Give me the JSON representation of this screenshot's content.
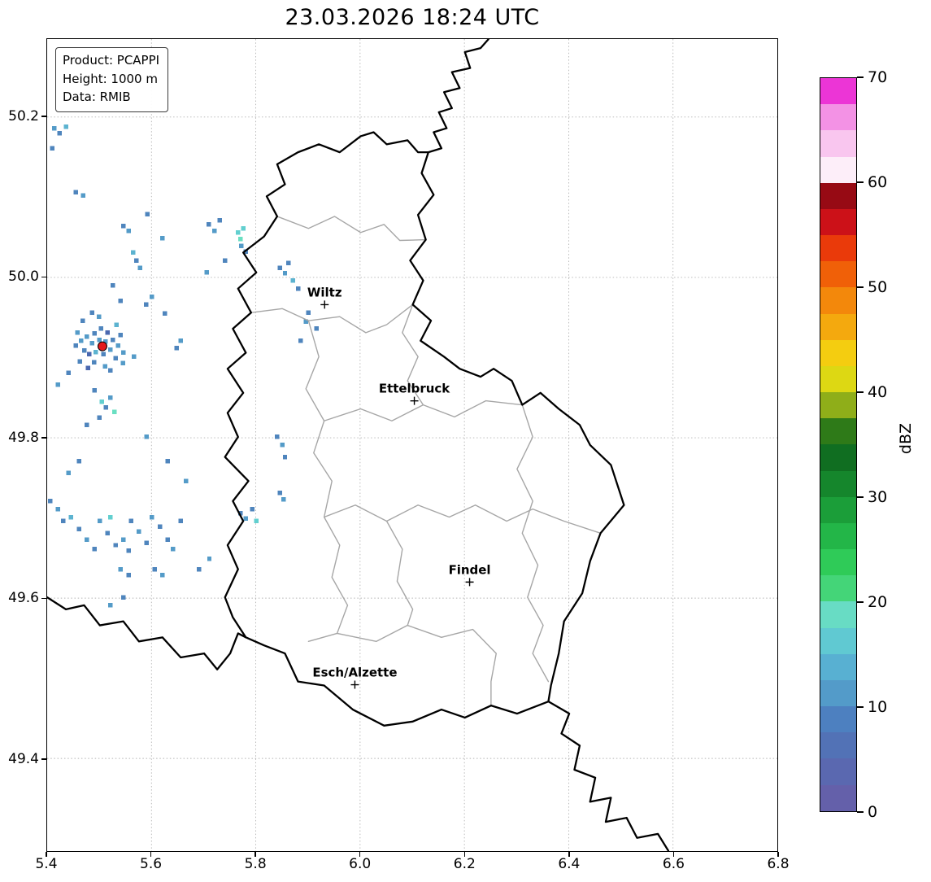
{
  "title": "23.03.2026 18:24 UTC",
  "info_box": {
    "lines": [
      "Product: PCAPPI",
      "Height: 1000 m",
      "Data: RMIB"
    ]
  },
  "axes": {
    "xlim": [
      5.4,
      6.8
    ],
    "ylim": [
      49.2845,
      50.2972
    ],
    "xticks": [
      5.4,
      5.6,
      5.8,
      6.0,
      6.2,
      6.4,
      6.6,
      6.8
    ],
    "xtick_labels": [
      "5.4",
      "5.6",
      "5.8",
      "6.0",
      "6.2",
      "6.4",
      "6.6",
      "6.8"
    ],
    "yticks": [
      50.2,
      50.0,
      49.8,
      49.6,
      49.4
    ],
    "ytick_labels": [
      "50.2",
      "50.0",
      "49.8",
      "49.6",
      "49.4"
    ],
    "grid_color": "#b3b3b3"
  },
  "colorbar": {
    "label": "dBZ",
    "min": 0,
    "max": 70,
    "ticks": [
      0,
      10,
      20,
      30,
      40,
      50,
      60,
      70
    ],
    "tick_labels": [
      "0",
      "10",
      "20",
      "30",
      "40",
      "50",
      "60",
      "70"
    ],
    "colors_bottom_to_top": [
      "#6460aa",
      "#5a68b0",
      "#5272b6",
      "#4d80c0",
      "#539bc9",
      "#58b0d2",
      "#60c9d2",
      "#68dcc4",
      "#44d578",
      "#2fcb58",
      "#23b648",
      "#1b9e39",
      "#15862c",
      "#106e21",
      "#2e7a18",
      "#8fae19",
      "#ddd813",
      "#f4cd10",
      "#f4a90e",
      "#f3880b",
      "#f06008",
      "#ea3a0a",
      "#cc1118",
      "#970a14",
      "#fdeef9",
      "#f9c6ef",
      "#f392e5",
      "#ec35d6"
    ]
  },
  "map": {
    "border_color": "#000000",
    "internal_border_color": "#a6a6a6",
    "cities": [
      {
        "name": "Wiltz",
        "lon": 5.932,
        "lat": 49.966
      },
      {
        "name": "Ettelbruck",
        "lon": 6.104,
        "lat": 49.846
      },
      {
        "name": "Findel",
        "lon": 6.21,
        "lat": 49.62
      },
      {
        "name": "Esch/Alzette",
        "lon": 5.99,
        "lat": 49.492
      }
    ],
    "radar_site": {
      "lon": 5.506,
      "lat": 49.914,
      "color": "#e31a1c"
    },
    "country_borders": [
      [
        [
          6.131,
          50.156
        ],
        [
          6.118,
          50.13
        ],
        [
          6.141,
          50.103
        ],
        [
          6.111,
          50.078
        ],
        [
          6.126,
          50.047
        ],
        [
          6.096,
          50.021
        ],
        [
          6.121,
          49.996
        ],
        [
          6.101,
          49.966
        ],
        [
          6.136,
          49.946
        ],
        [
          6.116,
          49.921
        ],
        [
          6.161,
          49.901
        ],
        [
          6.191,
          49.886
        ],
        [
          6.231,
          49.876
        ],
        [
          6.256,
          49.886
        ],
        [
          6.291,
          49.871
        ],
        [
          6.311,
          49.841
        ],
        [
          6.346,
          49.856
        ],
        [
          6.381,
          49.836
        ],
        [
          6.421,
          49.816
        ],
        [
          6.441,
          49.791
        ],
        [
          6.481,
          49.766
        ],
        [
          6.506,
          49.716
        ],
        [
          6.461,
          49.681
        ],
        [
          6.441,
          49.646
        ],
        [
          6.426,
          49.606
        ],
        [
          6.391,
          49.571
        ],
        [
          6.381,
          49.531
        ],
        [
          6.366,
          49.491
        ],
        [
          6.361,
          49.471
        ],
        [
          6.301,
          49.456
        ],
        [
          6.251,
          49.466
        ],
        [
          6.201,
          49.451
        ],
        [
          6.156,
          49.461
        ],
        [
          6.101,
          49.446
        ],
        [
          6.046,
          49.441
        ],
        [
          5.986,
          49.461
        ],
        [
          5.931,
          49.491
        ],
        [
          5.881,
          49.496
        ],
        [
          5.856,
          49.531
        ],
        [
          5.816,
          49.541
        ],
        [
          5.781,
          49.551
        ],
        [
          5.756,
          49.576
        ],
        [
          5.741,
          49.601
        ],
        [
          5.766,
          49.636
        ],
        [
          5.746,
          49.666
        ],
        [
          5.776,
          49.696
        ],
        [
          5.756,
          49.721
        ],
        [
          5.786,
          49.746
        ],
        [
          5.741,
          49.776
        ],
        [
          5.766,
          49.801
        ],
        [
          5.746,
          49.831
        ],
        [
          5.776,
          49.856
        ],
        [
          5.746,
          49.886
        ],
        [
          5.781,
          49.906
        ],
        [
          5.756,
          49.936
        ],
        [
          5.791,
          49.956
        ],
        [
          5.766,
          49.986
        ],
        [
          5.801,
          50.006
        ],
        [
          5.776,
          50.031
        ],
        [
          5.816,
          50.051
        ],
        [
          5.841,
          50.076
        ],
        [
          5.821,
          50.101
        ],
        [
          5.856,
          50.116
        ],
        [
          5.841,
          50.141
        ],
        [
          5.881,
          50.156
        ],
        [
          5.921,
          50.166
        ],
        [
          5.961,
          50.156
        ],
        [
          6.001,
          50.176
        ],
        [
          6.026,
          50.181
        ],
        [
          6.051,
          50.166
        ],
        [
          6.091,
          50.171
        ],
        [
          6.111,
          50.156
        ],
        [
          6.131,
          50.156
        ]
      ],
      [
        [
          6.131,
          50.156
        ],
        [
          6.156,
          50.161
        ],
        [
          6.141,
          50.181
        ],
        [
          6.166,
          50.186
        ],
        [
          6.151,
          50.206
        ],
        [
          6.176,
          50.211
        ],
        [
          6.161,
          50.231
        ],
        [
          6.191,
          50.236
        ],
        [
          6.176,
          50.256
        ],
        [
          6.211,
          50.261
        ],
        [
          6.201,
          50.281
        ],
        [
          6.231,
          50.286
        ],
        [
          6.246,
          50.297
        ]
      ],
      [
        [
          5.4,
          49.601
        ],
        [
          5.436,
          49.586
        ],
        [
          5.471,
          49.591
        ],
        [
          5.501,
          49.566
        ],
        [
          5.546,
          49.571
        ],
        [
          5.576,
          49.546
        ],
        [
          5.621,
          49.551
        ],
        [
          5.656,
          49.526
        ],
        [
          5.701,
          49.531
        ],
        [
          5.726,
          49.511
        ],
        [
          5.751,
          49.531
        ],
        [
          5.766,
          49.556
        ],
        [
          5.781,
          49.551
        ]
      ],
      [
        [
          6.361,
          49.471
        ],
        [
          6.401,
          49.456
        ],
        [
          6.386,
          49.431
        ],
        [
          6.421,
          49.416
        ],
        [
          6.411,
          49.386
        ],
        [
          6.451,
          49.376
        ],
        [
          6.441,
          49.346
        ],
        [
          6.481,
          49.351
        ],
        [
          6.471,
          49.321
        ],
        [
          6.511,
          49.326
        ],
        [
          6.531,
          49.301
        ],
        [
          6.571,
          49.306
        ],
        [
          6.591,
          49.285
        ]
      ]
    ],
    "internal_borders": [
      [
        [
          5.841,
          50.076
        ],
        [
          5.901,
          50.061
        ],
        [
          5.951,
          50.076
        ],
        [
          6.001,
          50.056
        ],
        [
          6.046,
          50.066
        ],
        [
          6.076,
          50.046
        ],
        [
          6.126,
          50.047
        ]
      ],
      [
        [
          5.791,
          49.956
        ],
        [
          5.851,
          49.961
        ],
        [
          5.901,
          49.946
        ],
        [
          5.961,
          49.951
        ],
        [
          6.011,
          49.931
        ],
        [
          6.051,
          49.941
        ],
        [
          6.101,
          49.966
        ]
      ],
      [
        [
          5.901,
          49.946
        ],
        [
          5.921,
          49.901
        ],
        [
          5.896,
          49.861
        ],
        [
          5.931,
          49.821
        ],
        [
          5.911,
          49.781
        ],
        [
          5.946,
          49.746
        ],
        [
          5.931,
          49.701
        ],
        [
          5.961,
          49.666
        ],
        [
          5.946,
          49.626
        ],
        [
          5.976,
          49.591
        ],
        [
          5.956,
          49.556
        ]
      ],
      [
        [
          5.931,
          49.701
        ],
        [
          5.991,
          49.716
        ],
        [
          6.051,
          49.696
        ],
        [
          6.111,
          49.716
        ],
        [
          6.171,
          49.701
        ],
        [
          6.221,
          49.716
        ],
        [
          6.281,
          49.696
        ],
        [
          6.331,
          49.711
        ],
        [
          6.391,
          49.696
        ],
        [
          6.461,
          49.681
        ]
      ],
      [
        [
          5.931,
          49.821
        ],
        [
          6.001,
          49.836
        ],
        [
          6.061,
          49.821
        ],
        [
          6.121,
          49.841
        ],
        [
          6.181,
          49.826
        ],
        [
          6.241,
          49.846
        ],
        [
          6.311,
          49.841
        ]
      ],
      [
        [
          5.901,
          49.546
        ],
        [
          5.956,
          49.556
        ],
        [
          6.031,
          49.546
        ],
        [
          6.091,
          49.566
        ],
        [
          6.156,
          49.551
        ],
        [
          6.216,
          49.561
        ],
        [
          6.261,
          49.531
        ],
        [
          6.251,
          49.496
        ],
        [
          6.251,
          49.466
        ]
      ],
      [
        [
          6.311,
          49.841
        ],
        [
          6.331,
          49.801
        ],
        [
          6.301,
          49.761
        ],
        [
          6.331,
          49.721
        ],
        [
          6.311,
          49.681
        ],
        [
          6.341,
          49.641
        ],
        [
          6.321,
          49.601
        ],
        [
          6.351,
          49.566
        ],
        [
          6.331,
          49.531
        ],
        [
          6.361,
          49.496
        ]
      ],
      [
        [
          6.101,
          49.966
        ],
        [
          6.081,
          49.931
        ],
        [
          6.111,
          49.901
        ],
        [
          6.091,
          49.871
        ],
        [
          6.121,
          49.841
        ]
      ],
      [
        [
          6.051,
          49.696
        ],
        [
          6.081,
          49.661
        ],
        [
          6.071,
          49.621
        ],
        [
          6.101,
          49.586
        ],
        [
          6.091,
          49.566
        ]
      ]
    ]
  },
  "chart_data": {
    "type": "heatmap",
    "title": "23.03.2026 18:24 UTC",
    "units": "dBZ",
    "value_range": [
      0,
      70
    ],
    "x_range": [
      5.4,
      6.8
    ],
    "y_range": [
      49.2845,
      50.2972
    ],
    "legend_position": "right-colorbar",
    "grid": true,
    "echo_palette": [
      "#4a68b0",
      "#4f85bd",
      "#549bc8",
      "#5cb3d0",
      "#62cfcf",
      "#6adfc2"
    ],
    "echoes": [
      [
        5.455,
        49.915,
        1
      ],
      [
        5.465,
        49.921,
        2
      ],
      [
        5.471,
        49.909,
        1
      ],
      [
        5.476,
        49.926,
        2
      ],
      [
        5.481,
        49.904,
        0
      ],
      [
        5.486,
        49.918,
        2
      ],
      [
        5.491,
        49.93,
        1
      ],
      [
        5.493,
        49.907,
        3
      ],
      [
        5.5,
        49.922,
        2
      ],
      [
        5.503,
        49.936,
        1
      ],
      [
        5.508,
        49.904,
        1
      ],
      [
        5.512,
        49.92,
        2
      ],
      [
        5.516,
        49.931,
        0
      ],
      [
        5.521,
        49.91,
        2
      ],
      [
        5.526,
        49.922,
        1
      ],
      [
        5.531,
        49.899,
        1
      ],
      [
        5.536,
        49.915,
        2
      ],
      [
        5.541,
        49.928,
        1
      ],
      [
        5.546,
        49.906,
        2
      ],
      [
        5.49,
        49.894,
        1
      ],
      [
        5.511,
        49.889,
        2
      ],
      [
        5.521,
        49.884,
        1
      ],
      [
        5.478,
        49.887,
        0
      ],
      [
        5.533,
        49.941,
        3
      ],
      [
        5.458,
        49.931,
        2
      ],
      [
        5.468,
        49.946,
        1
      ],
      [
        5.499,
        49.951,
        2
      ],
      [
        5.486,
        49.956,
        1
      ],
      [
        5.463,
        49.895,
        1
      ],
      [
        5.545,
        49.893,
        2
      ],
      [
        5.505,
        49.845,
        4
      ],
      [
        5.513,
        49.838,
        1
      ],
      [
        5.521,
        49.85,
        2
      ],
      [
        5.491,
        49.859,
        1
      ],
      [
        5.529,
        49.832,
        5
      ],
      [
        5.5,
        49.825,
        1
      ],
      [
        5.414,
        50.186,
        2
      ],
      [
        5.424,
        50.18,
        1
      ],
      [
        5.436,
        50.188,
        3
      ],
      [
        5.41,
        50.161,
        1
      ],
      [
        5.469,
        50.102,
        2
      ],
      [
        5.455,
        50.106,
        1
      ],
      [
        5.546,
        50.064,
        1
      ],
      [
        5.556,
        50.058,
        2
      ],
      [
        5.571,
        50.021,
        1
      ],
      [
        5.578,
        50.012,
        2
      ],
      [
        5.565,
        50.031,
        3
      ],
      [
        5.526,
        49.99,
        1
      ],
      [
        5.601,
        49.976,
        2
      ],
      [
        5.59,
        49.966,
        1
      ],
      [
        5.626,
        49.955,
        1
      ],
      [
        5.656,
        49.921,
        2
      ],
      [
        5.648,
        49.912,
        1
      ],
      [
        5.592,
        50.079,
        1
      ],
      [
        5.621,
        50.049,
        2
      ],
      [
        5.71,
        50.066,
        1
      ],
      [
        5.721,
        50.058,
        2
      ],
      [
        5.731,
        50.071,
        1
      ],
      [
        5.766,
        50.056,
        4
      ],
      [
        5.771,
        50.048,
        5
      ],
      [
        5.776,
        50.061,
        4
      ],
      [
        5.772,
        50.039,
        2
      ],
      [
        5.781,
        50.032,
        1
      ],
      [
        5.741,
        50.021,
        1
      ],
      [
        5.706,
        50.006,
        2
      ],
      [
        5.846,
        50.012,
        1
      ],
      [
        5.856,
        50.005,
        2
      ],
      [
        5.863,
        50.018,
        1
      ],
      [
        5.871,
        49.996,
        3
      ],
      [
        5.881,
        49.986,
        1
      ],
      [
        5.901,
        49.956,
        1
      ],
      [
        5.896,
        49.945,
        2
      ],
      [
        5.916,
        49.936,
        1
      ],
      [
        5.886,
        49.921,
        1
      ],
      [
        5.841,
        49.801,
        1
      ],
      [
        5.851,
        49.791,
        2
      ],
      [
        5.856,
        49.776,
        1
      ],
      [
        5.461,
        49.771,
        1
      ],
      [
        5.441,
        49.756,
        2
      ],
      [
        5.541,
        49.971,
        1
      ],
      [
        5.566,
        49.901,
        2
      ],
      [
        5.441,
        49.881,
        1
      ],
      [
        5.421,
        49.866,
        2
      ],
      [
        5.476,
        49.816,
        1
      ],
      [
        5.591,
        49.801,
        2
      ],
      [
        5.631,
        49.771,
        1
      ],
      [
        5.666,
        49.746,
        2
      ],
      [
        5.406,
        49.721,
        1
      ],
      [
        5.421,
        49.711,
        2
      ],
      [
        5.431,
        49.696,
        1
      ],
      [
        5.446,
        49.701,
        3
      ],
      [
        5.461,
        49.686,
        1
      ],
      [
        5.476,
        49.673,
        2
      ],
      [
        5.491,
        49.661,
        1
      ],
      [
        5.501,
        49.696,
        2
      ],
      [
        5.516,
        49.681,
        1
      ],
      [
        5.521,
        49.701,
        4
      ],
      [
        5.531,
        49.666,
        1
      ],
      [
        5.546,
        49.673,
        2
      ],
      [
        5.556,
        49.659,
        1
      ],
      [
        5.561,
        49.696,
        1
      ],
      [
        5.576,
        49.683,
        2
      ],
      [
        5.591,
        49.669,
        1
      ],
      [
        5.601,
        49.701,
        2
      ],
      [
        5.616,
        49.689,
        1
      ],
      [
        5.631,
        49.673,
        1
      ],
      [
        5.641,
        49.661,
        2
      ],
      [
        5.656,
        49.696,
        1
      ],
      [
        5.541,
        49.636,
        2
      ],
      [
        5.556,
        49.629,
        1
      ],
      [
        5.606,
        49.636,
        1
      ],
      [
        5.621,
        49.629,
        2
      ],
      [
        5.771,
        49.706,
        1
      ],
      [
        5.781,
        49.699,
        2
      ],
      [
        5.793,
        49.711,
        1
      ],
      [
        5.801,
        49.696,
        4
      ],
      [
        5.846,
        49.731,
        1
      ],
      [
        5.853,
        49.723,
        2
      ],
      [
        5.691,
        49.636,
        1
      ],
      [
        5.711,
        49.649,
        2
      ],
      [
        5.546,
        49.601,
        1
      ],
      [
        5.521,
        49.591,
        2
      ]
    ]
  }
}
